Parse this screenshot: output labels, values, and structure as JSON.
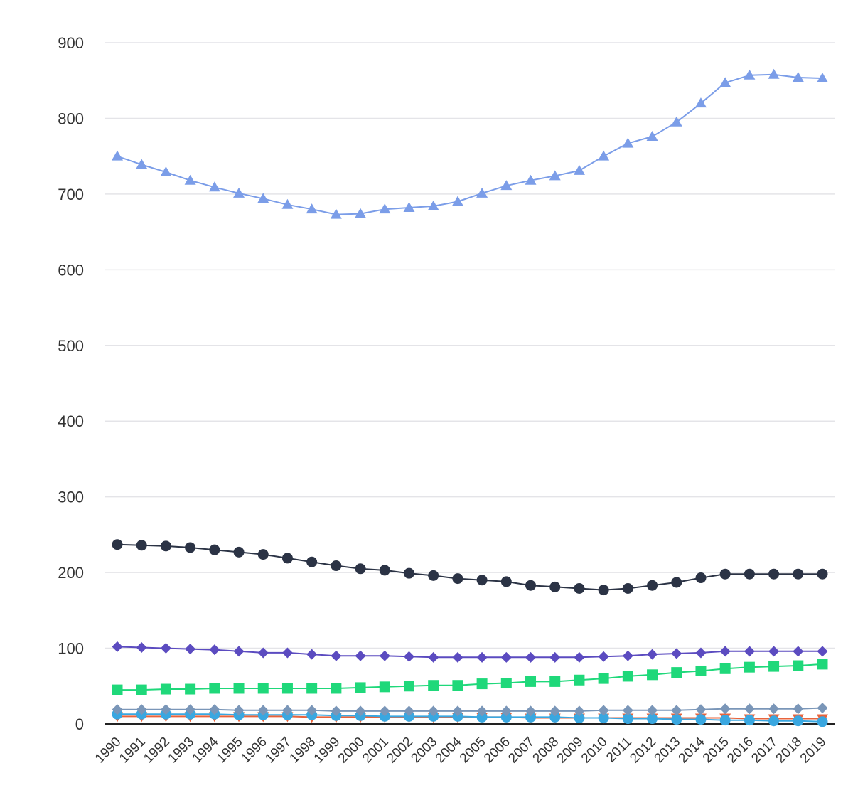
{
  "chart_data": {
    "type": "line",
    "x": [
      "1990",
      "1991",
      "1992",
      "1993",
      "1994",
      "1995",
      "1996",
      "1997",
      "1998",
      "1999",
      "2000",
      "2001",
      "2002",
      "2003",
      "2004",
      "2005",
      "2006",
      "2007",
      "2008",
      "2009",
      "2010",
      "2011",
      "2012",
      "2013",
      "2014",
      "2015",
      "2016",
      "2017",
      "2018",
      "2019"
    ],
    "ylim": [
      0,
      900
    ],
    "yticks": [
      0,
      100,
      200,
      300,
      400,
      500,
      600,
      700,
      800,
      900
    ],
    "grid": true,
    "legend": "none",
    "series": [
      {
        "marker": "triangle-up",
        "color": "#7b9de8",
        "values": [
          750,
          739,
          729,
          718,
          709,
          701,
          694,
          686,
          680,
          673,
          674,
          680,
          682,
          684,
          690,
          701,
          711,
          718,
          724,
          731,
          750,
          767,
          776,
          795,
          820,
          847,
          857,
          858,
          854,
          853
        ]
      },
      {
        "marker": "circle",
        "color": "#2b3345",
        "values": [
          237,
          236,
          235,
          233,
          230,
          227,
          224,
          219,
          214,
          209,
          205,
          203,
          199,
          196,
          192,
          190,
          188,
          183,
          181,
          179,
          177,
          179,
          183,
          187,
          193,
          198,
          198,
          198,
          198,
          198
        ]
      },
      {
        "marker": "diamond",
        "color": "#5b4bc0",
        "values": [
          102,
          101,
          100,
          99,
          98,
          96,
          94,
          94,
          92,
          90,
          90,
          90,
          89,
          88,
          88,
          88,
          88,
          88,
          88,
          88,
          89,
          90,
          92,
          93,
          94,
          96,
          96,
          96,
          96,
          96
        ]
      },
      {
        "marker": "square",
        "color": "#1fd87a",
        "values": [
          45,
          45,
          46,
          46,
          47,
          47,
          47,
          47,
          47,
          47,
          48,
          49,
          50,
          51,
          51,
          53,
          54,
          56,
          56,
          58,
          60,
          63,
          65,
          68,
          70,
          73,
          75,
          76,
          77,
          79
        ]
      },
      {
        "marker": "diamond",
        "color": "#7a96b8",
        "values": [
          19,
          19,
          19,
          19,
          19,
          18,
          18,
          18,
          18,
          17,
          17,
          17,
          17,
          17,
          17,
          17,
          17,
          17,
          17,
          17,
          18,
          18,
          18,
          18,
          19,
          20,
          20,
          20,
          20,
          21
        ]
      },
      {
        "marker": "circle",
        "color": "#3aa7e0",
        "values": [
          13,
          13,
          13,
          13,
          13,
          12,
          12,
          12,
          12,
          11,
          11,
          10,
          10,
          10,
          10,
          9,
          9,
          9,
          9,
          8,
          8,
          7,
          7,
          6,
          6,
          5,
          5,
          4,
          4,
          3
        ]
      },
      {
        "marker": "triangle-down",
        "color": "#e8643c",
        "values": [
          10,
          10,
          10,
          10,
          10,
          10,
          10,
          10,
          9,
          9,
          9,
          9,
          9,
          9,
          9,
          9,
          9,
          8,
          8,
          8,
          8,
          8,
          8,
          8,
          8,
          8,
          7,
          7,
          7,
          7
        ]
      }
    ]
  }
}
